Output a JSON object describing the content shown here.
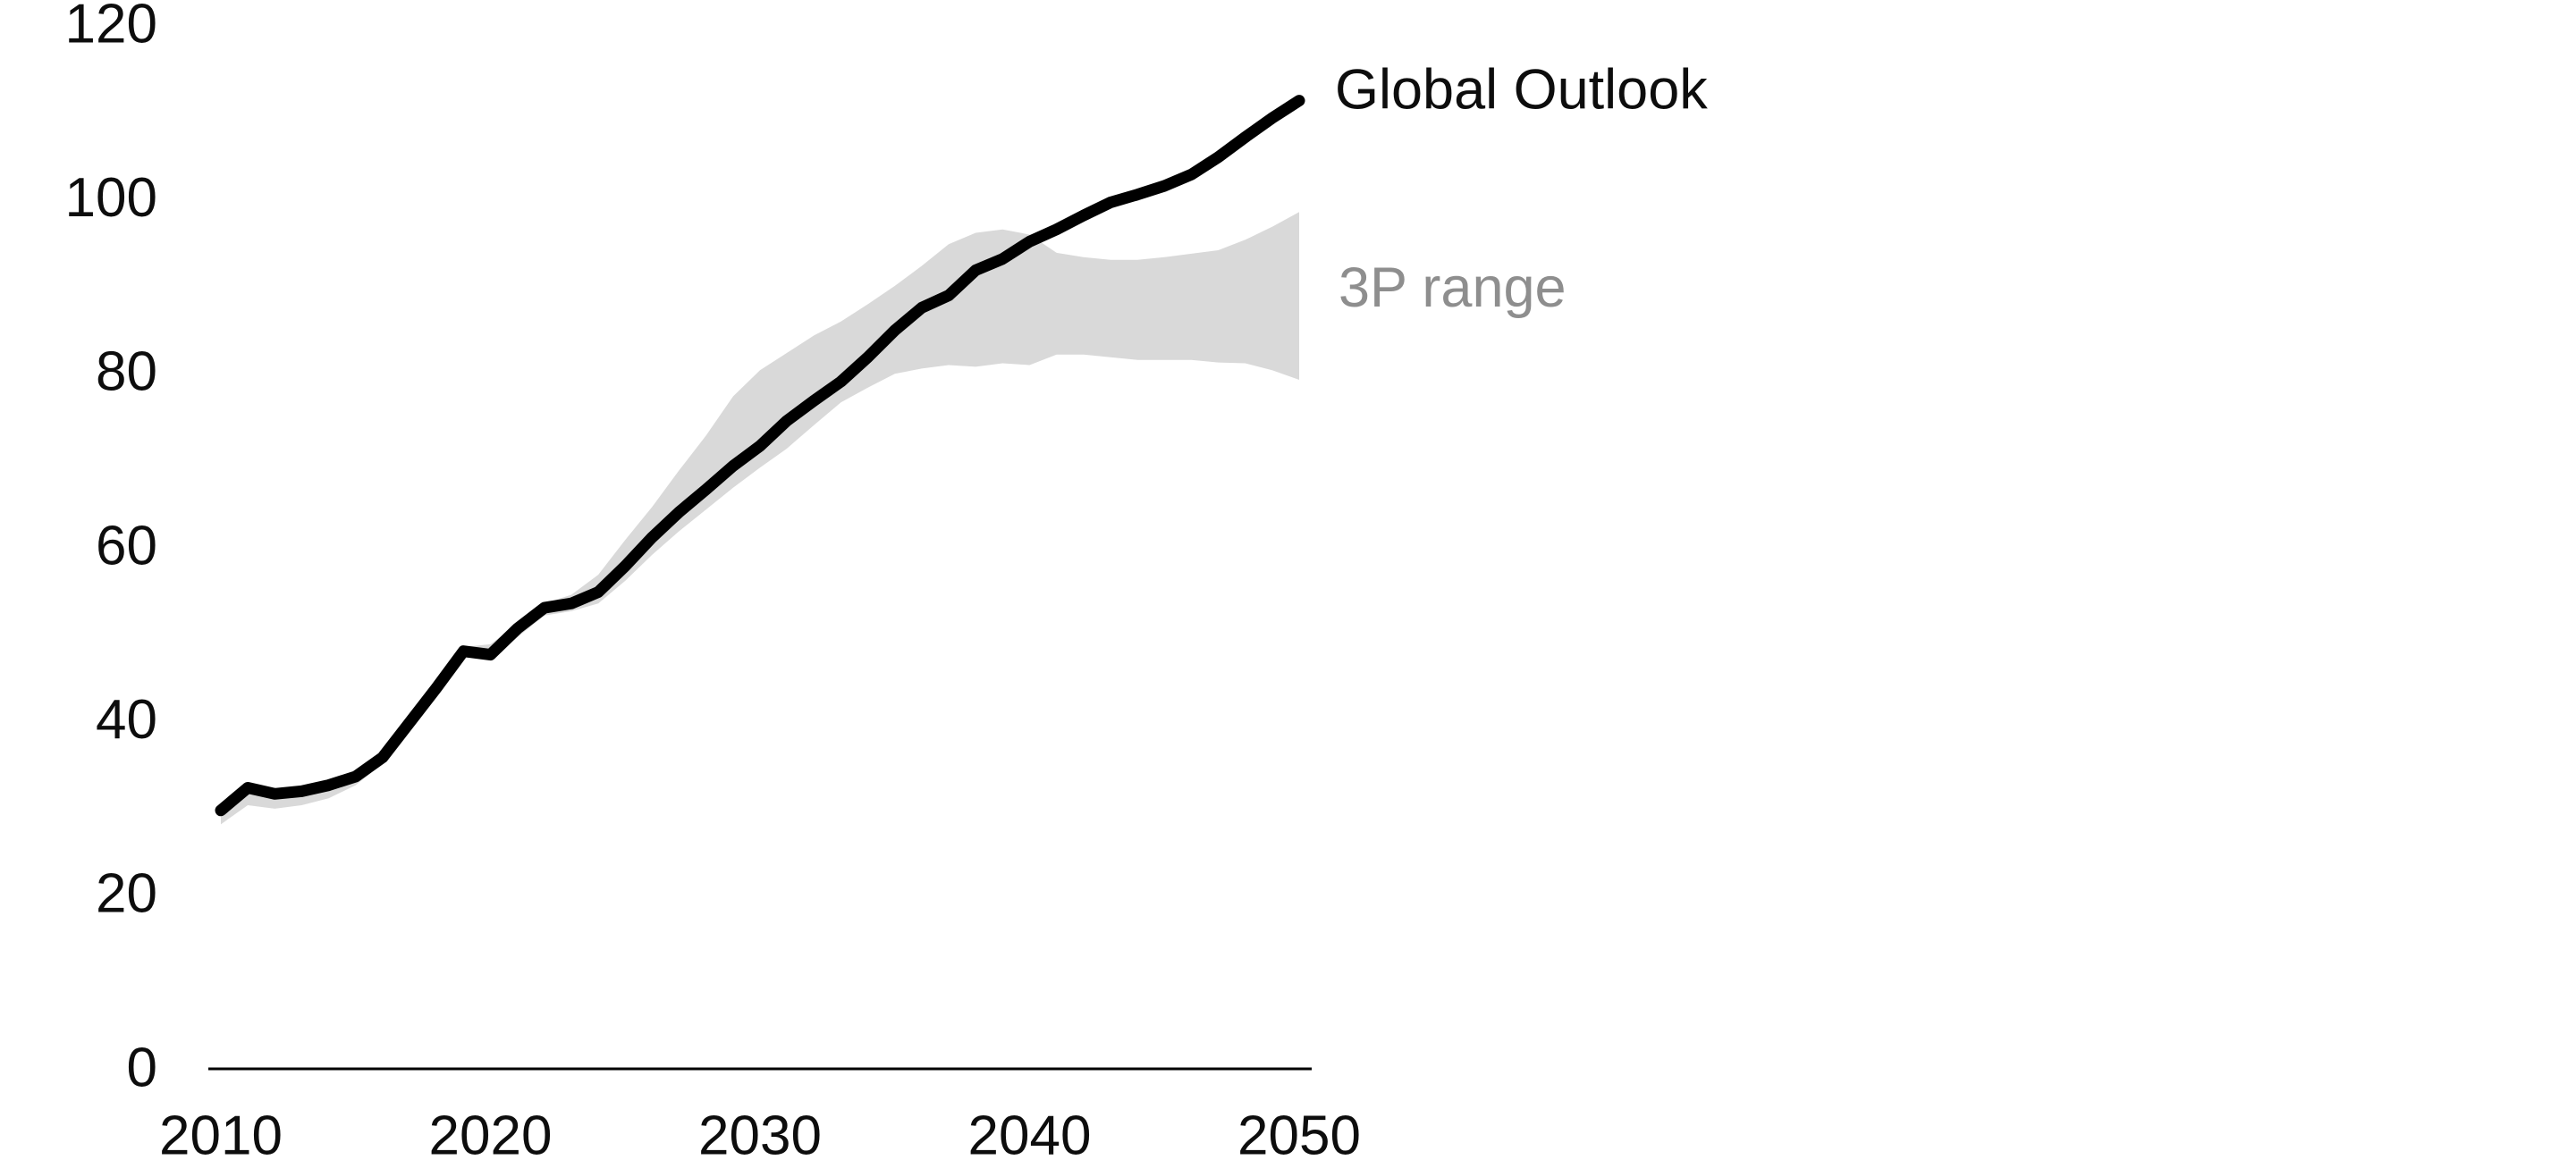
{
  "chart_data": {
    "type": "line",
    "title": "",
    "xlabel": "",
    "ylabel": "",
    "xlim": [
      2010,
      2050
    ],
    "ylim": [
      0,
      120
    ],
    "grid": false,
    "legend_position": "right-of-line-end",
    "x_ticks": [
      "2010",
      "2020",
      "2030",
      "2040",
      "2050"
    ],
    "x_tick_values": [
      2010,
      2020,
      2030,
      2040,
      2050
    ],
    "y_ticks": [
      "0",
      "20",
      "40",
      "60",
      "80",
      "100",
      "120"
    ],
    "y_tick_values": [
      0,
      20,
      40,
      60,
      80,
      100,
      120
    ],
    "x": [
      2010,
      2011,
      2012,
      2013,
      2014,
      2015,
      2016,
      2017,
      2018,
      2019,
      2020,
      2021,
      2022,
      2023,
      2024,
      2025,
      2026,
      2027,
      2028,
      2029,
      2030,
      2031,
      2032,
      2033,
      2034,
      2035,
      2036,
      2037,
      2038,
      2039,
      2040,
      2041,
      2042,
      2043,
      2044,
      2045,
      2046,
      2047,
      2048,
      2049,
      2050
    ],
    "series": [
      {
        "name": "Global Outlook",
        "color": "#000000",
        "label_color": "#0d0d0d",
        "values": [
          29.4,
          32.0,
          31.3,
          31.6,
          32.3,
          33.3,
          35.5,
          39.5,
          43.5,
          47.7,
          47.3,
          50.3,
          52.7,
          53.2,
          54.5,
          57.5,
          60.8,
          63.7,
          66.3,
          69.0,
          71.3,
          74.2,
          76.5,
          78.7,
          81.5,
          84.6,
          87.2,
          88.6,
          91.5,
          92.8,
          94.8,
          96.2,
          97.8,
          99.3,
          100.2,
          101.2,
          102.5,
          104.5,
          106.8,
          109.0,
          111.0
        ]
      }
    ],
    "band": {
      "name": "3P range",
      "color": "#d9d9d9",
      "label_color": "#8e8e8e",
      "upper": [
        30.2,
        32.3,
        31.8,
        32.0,
        32.8,
        34.0,
        36.0,
        40.0,
        44.0,
        48.2,
        48.5,
        50.8,
        53.2,
        54.2,
        56.5,
        60.5,
        64.3,
        68.5,
        72.5,
        77.0,
        80.0,
        82.0,
        84.0,
        85.6,
        87.6,
        89.7,
        92.0,
        94.5,
        95.8,
        96.2,
        95.6,
        93.5,
        93.0,
        92.7,
        92.7,
        93.0,
        93.4,
        93.8,
        95.0,
        96.5,
        98.2
      ],
      "lower": [
        27.8,
        30.0,
        29.6,
        30.0,
        30.8,
        32.3,
        34.8,
        38.8,
        43.0,
        47.0,
        46.8,
        49.3,
        51.8,
        52.3,
        53.2,
        55.8,
        58.8,
        61.5,
        64.0,
        66.5,
        68.8,
        71.0,
        73.7,
        76.3,
        78.0,
        79.6,
        80.2,
        80.6,
        80.4,
        80.8,
        80.6,
        81.8,
        81.8,
        81.5,
        81.2,
        81.2,
        81.2,
        80.9,
        80.8,
        80.0,
        78.9
      ]
    },
    "axis": {
      "color": "#000000"
    }
  }
}
